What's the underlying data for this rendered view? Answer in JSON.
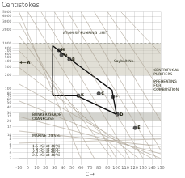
{
  "chart_data": {
    "type": "line",
    "title": "Centistokes",
    "xlabel": "C →",
    "xlim": [
      -10,
      150
    ],
    "ylim": [
      3,
      5000
    ],
    "log": "y",
    "grid": true,
    "xticks": [
      -10,
      0,
      10,
      20,
      30,
      40,
      50,
      60,
      70,
      80,
      90,
      100,
      110,
      120,
      130,
      140,
      150
    ],
    "yticks": [
      3,
      4,
      5,
      6,
      7,
      8,
      9,
      10,
      15,
      20,
      25,
      30,
      40,
      50,
      60,
      70,
      80,
      100,
      200,
      300,
      400,
      500,
      600,
      700,
      800,
      1000,
      2000,
      3000,
      4000,
      5000
    ],
    "bands": [
      {
        "ymin": 20,
        "ymax": 30,
        "color": "#b0b0a8"
      },
      {
        "ymin": 200,
        "ymax": 1000,
        "color": "#c8c4b4"
      }
    ],
    "reference_lines": [
      {
        "y": 1000,
        "color": "#777766",
        "line_style": "dashed"
      }
    ],
    "diagonals": {
      "color": "#aaa090",
      "lines": [
        {
          "x": [
            -10,
            60
          ],
          "values": [
            5000,
            3
          ]
        },
        {
          "x": [
            -10,
            75
          ],
          "values": [
            3000,
            3
          ]
        },
        {
          "x": [
            -10,
            95
          ],
          "values": [
            1500,
            3
          ]
        },
        {
          "x": [
            -10,
            110
          ],
          "values": [
            700,
            3
          ]
        },
        {
          "x": [
            -10,
            125
          ],
          "values": [
            300,
            3
          ]
        },
        {
          "x": [
            -10,
            140
          ],
          "values": [
            130,
            3
          ]
        },
        {
          "x": [
            -10,
            150
          ],
          "values": [
            55,
            3
          ]
        },
        {
          "x": [
            -10,
            150
          ],
          "values": [
            25,
            3.8
          ]
        },
        {
          "x": [
            -10,
            150
          ],
          "values": [
            12,
            5.5
          ]
        },
        {
          "x": [
            -10,
            150
          ],
          "values": [
            6.5,
            8
          ]
        },
        {
          "x": [
            0,
            100
          ],
          "values": [
            5000,
            3
          ]
        },
        {
          "x": [
            15,
            115
          ],
          "values": [
            5000,
            3
          ]
        },
        {
          "x": [
            30,
            130
          ],
          "values": [
            5000,
            3
          ]
        },
        {
          "x": [
            45,
            145
          ],
          "values": [
            5000,
            3
          ]
        },
        {
          "x": [
            60,
            150
          ],
          "values": [
            5000,
            4.5
          ]
        },
        {
          "x": [
            75,
            150
          ],
          "values": [
            5000,
            20
          ]
        },
        {
          "x": [
            90,
            150
          ],
          "values": [
            5000,
            90
          ]
        },
        {
          "x": [
            105,
            150
          ],
          "values": [
            5000,
            600
          ]
        }
      ]
    },
    "envelope": {
      "color": "#111111",
      "lines": [
        {
          "x": [
            28,
            42,
            95,
            100
          ],
          "values": [
            900,
            550,
            95,
            28
          ]
        },
        {
          "x": [
            28,
            55,
            100
          ],
          "values": [
            72,
            72,
            28
          ]
        },
        {
          "x": [
            28,
            28
          ],
          "values": [
            72,
            900
          ]
        }
      ]
    },
    "points": {
      "color": "#555555",
      "labels": [
        "H",
        "G",
        "B",
        "K",
        "C",
        "F",
        "D",
        "E"
      ],
      "x": [
        35,
        38,
        47,
        57,
        80,
        96,
        101,
        121
      ],
      "values": [
        720,
        560,
        450,
        72,
        80,
        68,
        28,
        14
      ]
    },
    "arrow_labels": [
      {
        "text": "A",
        "x": -10,
        "y": 380
      }
    ],
    "annotations": [
      {
        "text": "ATOMISE PUMPING LIMIT",
        "x": 65,
        "y": 1700,
        "align": "center"
      },
      {
        "text": "Saybolt No.",
        "x": 97,
        "y": 400,
        "align": "left"
      },
      {
        "text": "CENTRIFUGAL\nPURIFIERS",
        "x": 142,
        "y": 230,
        "align": "left"
      },
      {
        "text": "PREHEATING\nFOR\nCOMBUSTION",
        "x": 142,
        "y": 120,
        "align": "left"
      },
      {
        "text": "BUNKER GRADE\nCRANKCASE",
        "x": 5,
        "y": 25,
        "align": "left"
      },
      {
        "text": "MARINE DIESEL",
        "x": 5,
        "y": 9.5,
        "align": "left"
      },
      {
        "text": "1.5 cSt at 40°C",
        "x": 5,
        "y": 5.6,
        "align": "left"
      },
      {
        "text": "1.8 cSt at 40°C",
        "x": 5,
        "y": 4.7,
        "align": "left"
      },
      {
        "text": "2.0 cSt at 40°C",
        "x": 5,
        "y": 4.1,
        "align": "left"
      },
      {
        "text": "2.5 cSt at 40°C",
        "x": 5,
        "y": 3.5,
        "align": "left"
      }
    ],
    "annotation_color": "#222211"
  }
}
